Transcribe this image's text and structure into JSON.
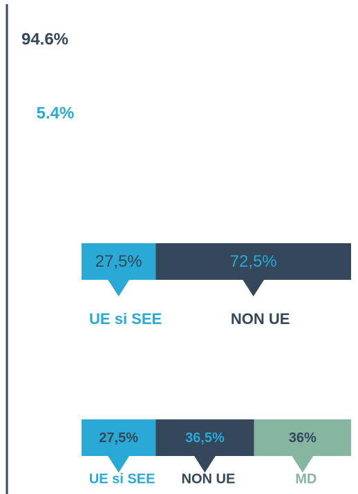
{
  "chart_data": [
    {
      "type": "pictograph",
      "values": [
        94.6,
        5.4
      ],
      "value_labels": [
        "94.6%",
        "5.4%"
      ],
      "colors": [
        "#34475b",
        "#29a9d6"
      ]
    },
    {
      "type": "stacked_bar",
      "categories": [
        "UE si SEE",
        "NON UE"
      ],
      "values": [
        27.5,
        72.5
      ],
      "value_labels": [
        "27,5%",
        "72,5%"
      ],
      "colors": [
        "#29a9d6",
        "#34475b"
      ]
    },
    {
      "type": "stacked_bar",
      "categories": [
        "UE si SEE",
        "NON UE",
        "MD"
      ],
      "values": [
        27.5,
        36.5,
        36
      ],
      "value_labels": [
        "27,5%",
        "36,5%",
        "36%"
      ],
      "colors": [
        "#29a9d6",
        "#34475b",
        "#86b5a0"
      ]
    }
  ]
}
